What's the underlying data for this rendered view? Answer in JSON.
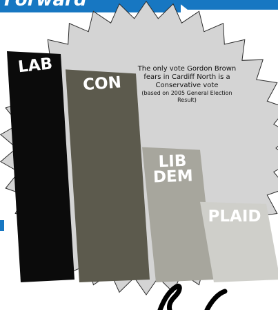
{
  "banner": {
    "text": "Forward",
    "color": "#1777c2"
  },
  "note": {
    "main": "The only vote Gordon Brown fears in Cardiff North is a Conservative vote",
    "sub": "(based on 2005 General Election Result)"
  },
  "colors": {
    "starburst": "#d4d4d4",
    "starburst_outline": "#2b2b2b",
    "edge_accent": "#1777c2"
  },
  "chart_data": {
    "type": "bar",
    "categories": [
      "LAB",
      "CON",
      "LIB DEM",
      "PLAID"
    ],
    "values": [
      100,
      92,
      58,
      34
    ],
    "label_lines": [
      [
        "LAB"
      ],
      [
        "CON"
      ],
      [
        "LIB",
        "DEM"
      ],
      [
        "PLAID"
      ]
    ],
    "colors": [
      "#0b0b0b",
      "#5c5a4d",
      "#a7a69d",
      "#cfcfca"
    ],
    "ylim": [
      0,
      100
    ],
    "legend": "none",
    "grid": false
  }
}
